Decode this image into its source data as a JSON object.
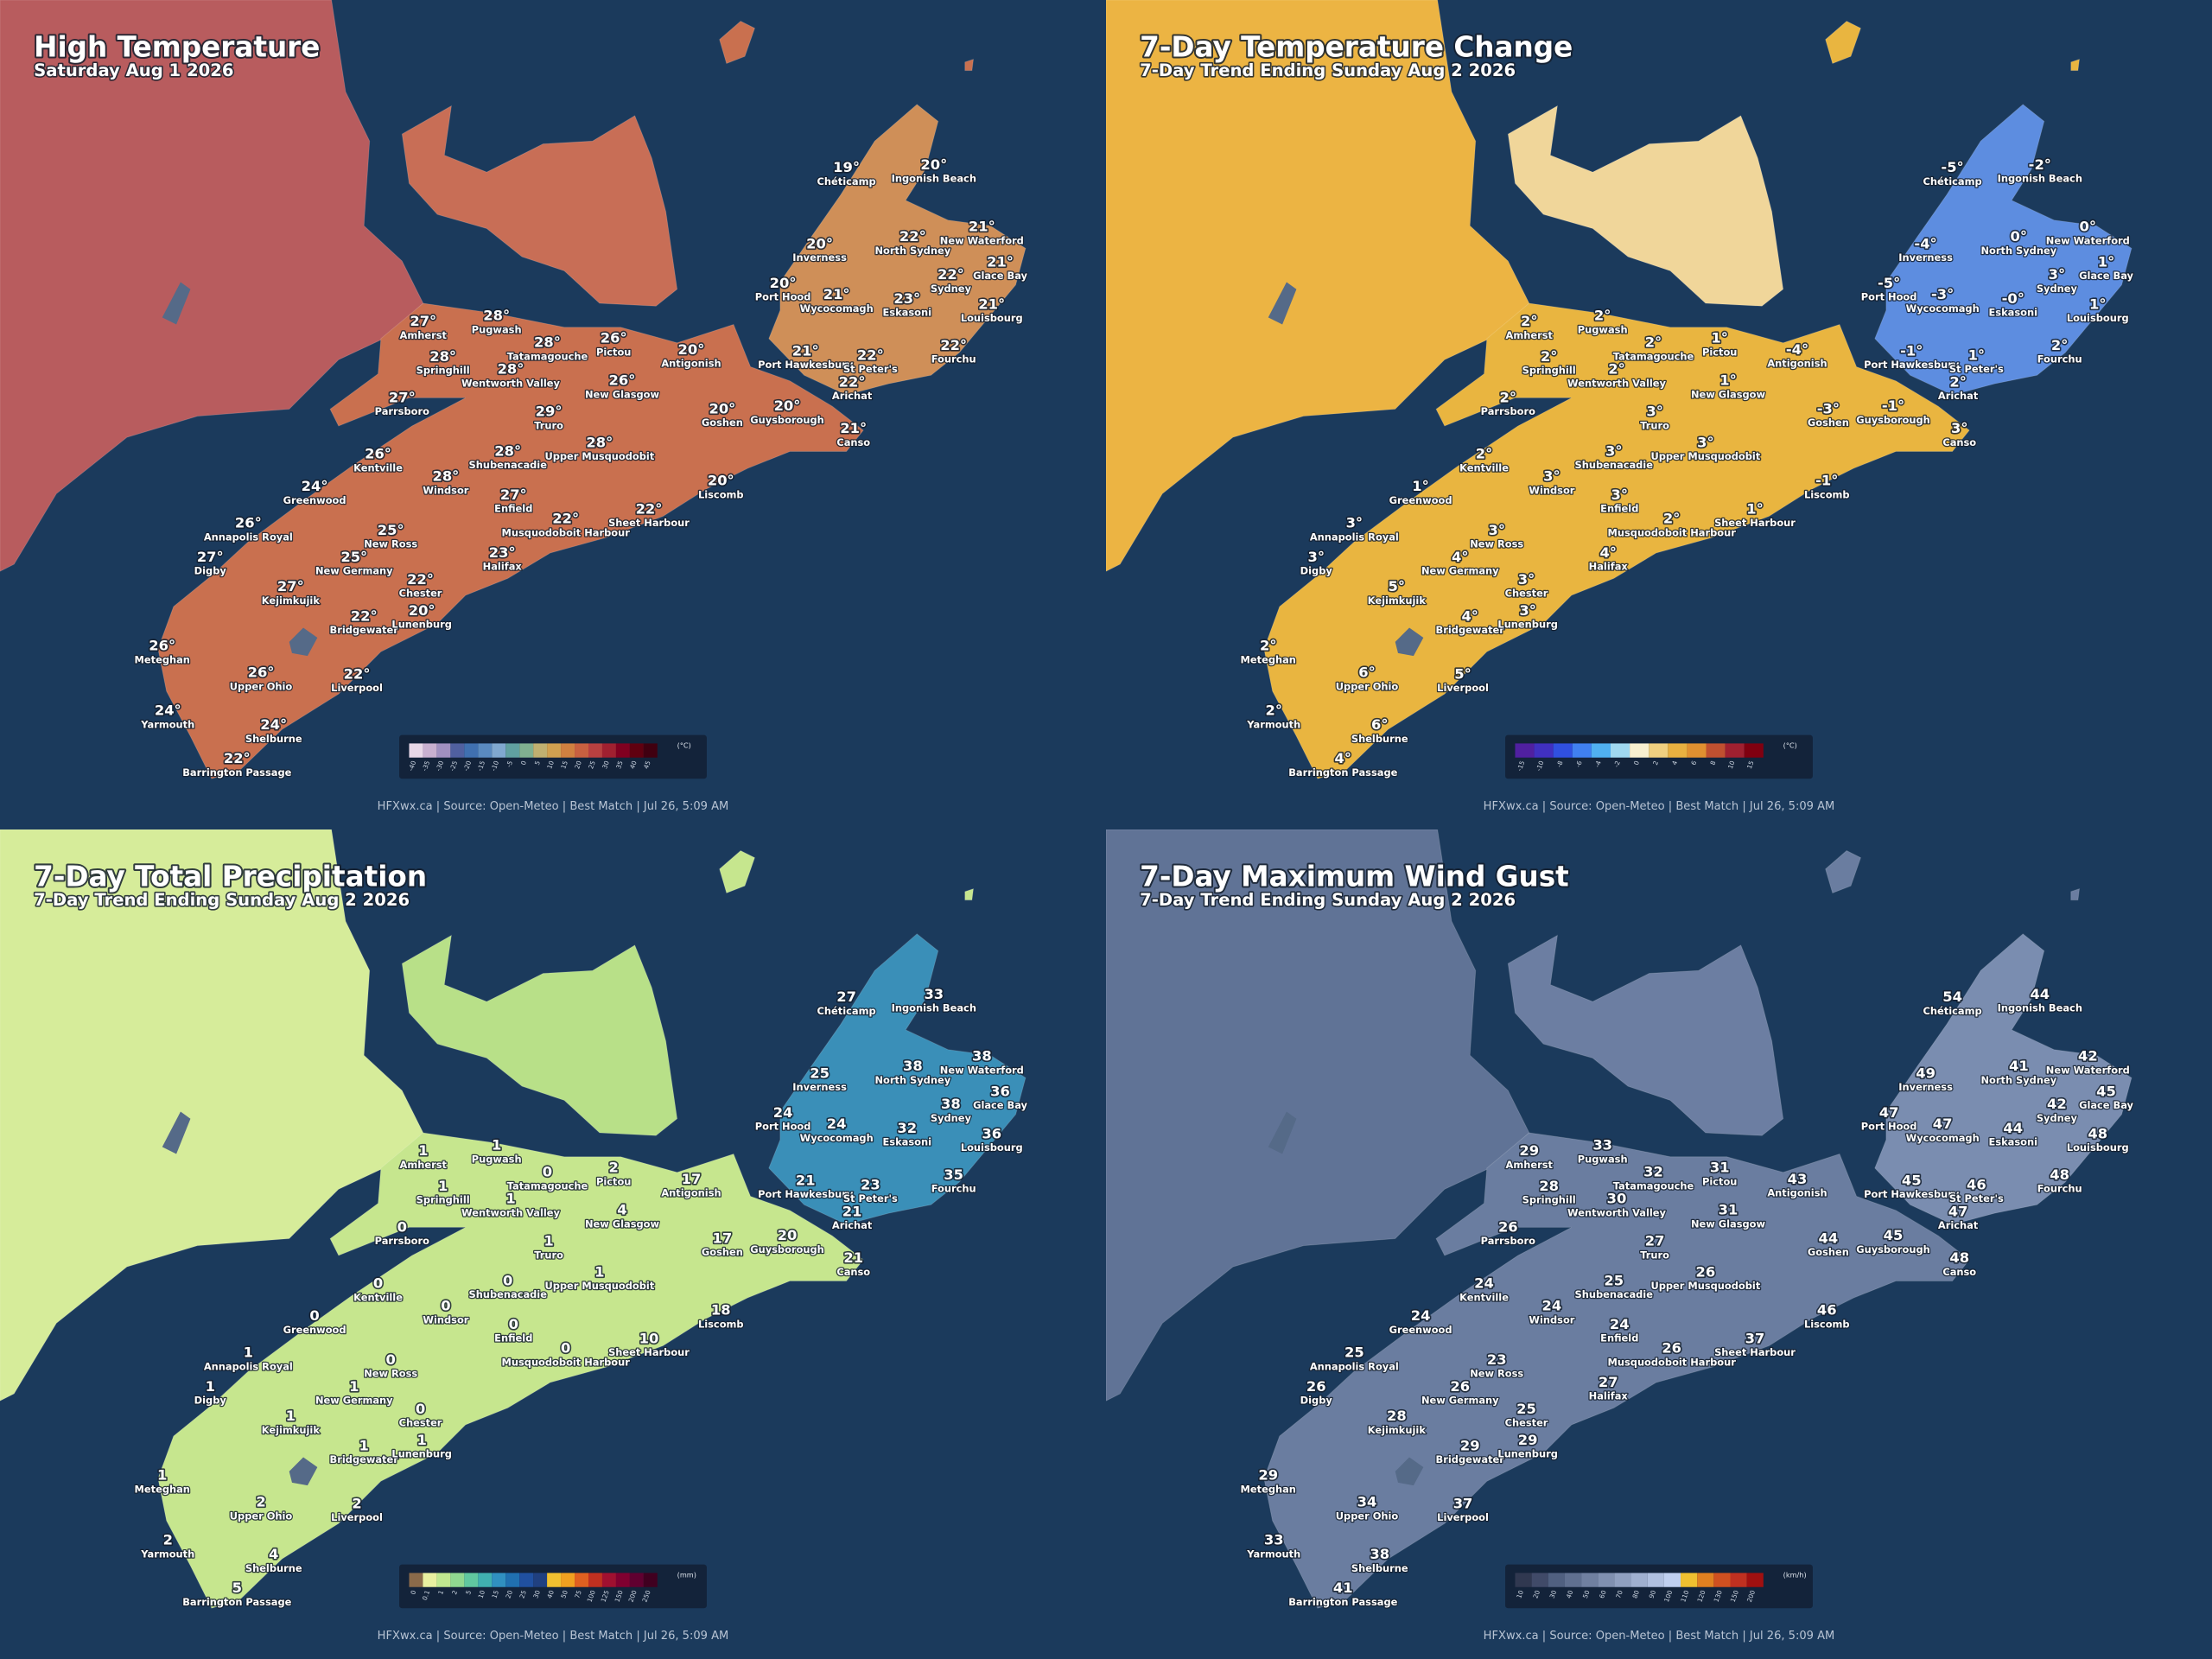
{
  "stations": [
    "Chéticamp",
    "Ingonish Beach",
    "Inverness",
    "North Sydney",
    "New Waterford",
    "Glace Bay",
    "Sydney",
    "Port Hood",
    "Wycocomagh",
    "Eskasoni",
    "Louisbourg",
    "Amherst",
    "Pugwash",
    "Tatamagouche",
    "Pictou",
    "Springhill",
    "Wentworth Valley",
    "Antigonish",
    "Port Hawkesbury",
    "St Peter's",
    "Fourchu",
    "Arichat",
    "Parrsboro",
    "New Glasgow",
    "Truro",
    "Goshen",
    "Guysborough",
    "Canso",
    "Kentville",
    "Shubenacadie",
    "Upper Musquodobit",
    "Windsor",
    "Greenwood",
    "Liscomb",
    "Enfield",
    "Annapolis Royal",
    "Musquodoboit Harbour",
    "Sheet Harbour",
    "New Ross",
    "Digby",
    "New Germany",
    "Halifax",
    "Chester",
    "Kejimkujik",
    "Bridgewater",
    "Lunenburg",
    "Meteghan",
    "Upper Ohio",
    "Liverpool",
    "Yarmouth",
    "Shelburne",
    "Barrington Passage"
  ],
  "panels": [
    {
      "title": "High Temperature",
      "subtitle": "Saturday Aug 1 2026",
      "legend": {
        "unit": "(°C)",
        "ticks": [
          -40,
          -35,
          -30,
          -25,
          -20,
          -15,
          -10,
          -5,
          0,
          5,
          10,
          15,
          20,
          25,
          30,
          35,
          40,
          45
        ]
      },
      "values": [
        "19°",
        "20°",
        "20°",
        "22°",
        "21°",
        "21°",
        "22°",
        "20°",
        "21°",
        "23°",
        "21°",
        "27°",
        "28°",
        "28°",
        "26°",
        "28°",
        "28°",
        "20°",
        "21°",
        "22°",
        "22°",
        "22°",
        "27°",
        "26°",
        "29°",
        "20°",
        "20°",
        "21°",
        "26°",
        "28°",
        "28°",
        "28°",
        "24°",
        "20°",
        "27°",
        "26°",
        "22°",
        "22°",
        "25°",
        "27°",
        "25°",
        "23°",
        "22°",
        "27°",
        "22°",
        "20°",
        "26°",
        "26°",
        "22°",
        "24°",
        "24°",
        "22°"
      ],
      "footer": "HFXwx.ca | Source: Open-Meteo | Best Match | Jul 26, 5:09 AM"
    },
    {
      "title": "7-Day Temperature Change",
      "subtitle": "7-Day Trend Ending Sunday Aug 2 2026",
      "legend": {
        "unit": "(°C)",
        "ticks": [
          -15,
          -10,
          -8,
          -6,
          -4,
          -2,
          0,
          2,
          4,
          6,
          8,
          10,
          15
        ]
      },
      "values": [
        "-5°",
        "-2°",
        "-4°",
        "0°",
        "0°",
        "1°",
        "3°",
        "-5°",
        "-3°",
        "-0°",
        "1°",
        "2°",
        "2°",
        "2°",
        "1°",
        "2°",
        "2°",
        "-4°",
        "-1°",
        "1°",
        "2°",
        "2°",
        "2°",
        "1°",
        "3°",
        "-3°",
        "-1°",
        "3°",
        "2°",
        "3°",
        "3°",
        "3°",
        "1°",
        "-1°",
        "3°",
        "3°",
        "2°",
        "1°",
        "3°",
        "3°",
        "4°",
        "4°",
        "3°",
        "5°",
        "4°",
        "3°",
        "2°",
        "6°",
        "5°",
        "2°",
        "6°",
        "4°"
      ],
      "footer": "HFXwx.ca | Source: Open-Meteo | Best Match | Jul 26, 5:09 AM"
    },
    {
      "title": "7-Day Total Precipitation",
      "subtitle": "7-Day Trend Ending Sunday Aug 2 2026",
      "legend": {
        "unit": "(mm)",
        "ticks": [
          0,
          0.1,
          1,
          2,
          5,
          10,
          15,
          20,
          25,
          30,
          40,
          50,
          75,
          100,
          125,
          150,
          200,
          250
        ]
      },
      "values": [
        27,
        33,
        25,
        38,
        38,
        36,
        38,
        24,
        24,
        32,
        36,
        1,
        1,
        0,
        2,
        1,
        1,
        17,
        21,
        23,
        35,
        21,
        0,
        4,
        1,
        17,
        20,
        21,
        0,
        0,
        1,
        0,
        0,
        18,
        0,
        1,
        0,
        10,
        0,
        1,
        1,
        null,
        0,
        1,
        1,
        1,
        1,
        2,
        2,
        2,
        4,
        5
      ],
      "footer": "HFXwx.ca | Source: Open-Meteo | Best Match | Jul 26, 5:09 AM"
    },
    {
      "title": "7-Day Maximum Wind Gust",
      "subtitle": "7-Day Trend Ending Sunday Aug 2 2026",
      "legend": {
        "unit": "(km/h)",
        "ticks": [
          10,
          20,
          30,
          40,
          50,
          60,
          70,
          80,
          90,
          100,
          110,
          120,
          130,
          150,
          200
        ]
      },
      "values": [
        54,
        44,
        49,
        41,
        42,
        45,
        42,
        47,
        47,
        44,
        48,
        29,
        33,
        32,
        31,
        28,
        30,
        43,
        45,
        46,
        48,
        47,
        26,
        31,
        27,
        44,
        45,
        48,
        24,
        25,
        26,
        24,
        24,
        46,
        24,
        25,
        26,
        37,
        23,
        26,
        26,
        27,
        25,
        28,
        29,
        29,
        29,
        34,
        37,
        33,
        38,
        41
      ],
      "footer": "HFXwx.ca | Source: Open-Meteo | Best Match | Jul 26, 5:09 AM"
    }
  ]
}
